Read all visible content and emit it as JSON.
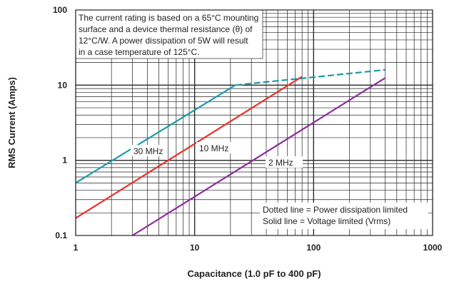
{
  "chart_data": {
    "type": "line",
    "xlabel": "Capacitance (1.0 pF to 400 pF)",
    "ylabel": "RMS Current (Amps)",
    "xscale": "log",
    "yscale": "log",
    "xlim": [
      1,
      1000
    ],
    "ylim": [
      0.1,
      100
    ],
    "xticks": [
      "1",
      "10",
      "100",
      "1000"
    ],
    "yticks": [
      "0.1",
      "1",
      "10",
      "100"
    ],
    "grid": true,
    "annotations": {
      "top_note": [
        "The current rating is based on a 65°C mounting",
        "surface and a device thermal resistance (θ) of",
        "12°C/W. A power dissipation of 5W will result",
        "in a case temperature of 125°C."
      ],
      "bottom_note": [
        "Dotted line = Power dissipation limited",
        "Solid line = Voltage limited (Vrms)"
      ]
    },
    "series": [
      {
        "name": "30 MHz",
        "color": "#1a9aa8",
        "segments": [
          {
            "style": "solid",
            "x": [
              1,
              22
            ],
            "y": [
              0.5,
              10
            ]
          },
          {
            "style": "dashed",
            "x": [
              22,
              400
            ],
            "y": [
              10,
              16
            ]
          }
        ]
      },
      {
        "name": "10 MHz",
        "color": "#e8312b",
        "segments": [
          {
            "style": "solid",
            "x": [
              1,
              80
            ],
            "y": [
              0.17,
              13
            ]
          }
        ]
      },
      {
        "name": "2 MHz",
        "color": "#8b2d9c",
        "segments": [
          {
            "style": "solid",
            "x": [
              3,
              400
            ],
            "y": [
              0.1,
              12.5
            ]
          }
        ]
      }
    ]
  }
}
